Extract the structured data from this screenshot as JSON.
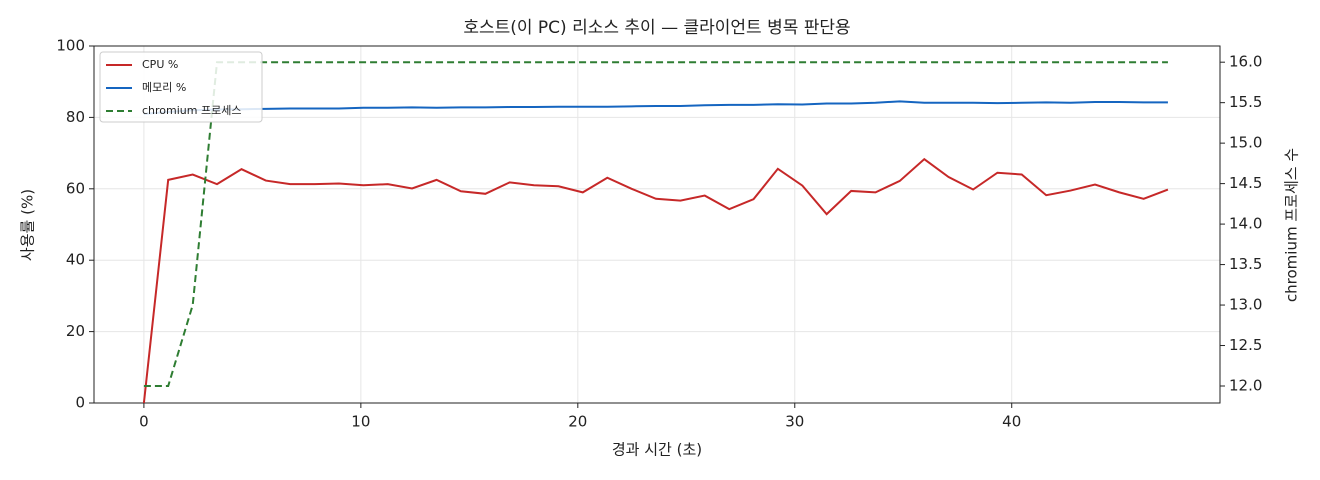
{
  "chart_data": {
    "type": "line",
    "title": "호스트(이 PC) 리소스 추이 — 클라이언트 병목 판단용",
    "x_label": "경과 시간 (초)",
    "y_label": "사용률 (%)",
    "y2_label": "chromium 프로세스 수",
    "x": [
      0,
      1.12,
      2.25,
      3.37,
      4.5,
      5.62,
      6.74,
      7.87,
      8.99,
      10.12,
      11.24,
      12.36,
      13.49,
      14.61,
      15.74,
      16.86,
      17.98,
      19.11,
      20.23,
      21.36,
      22.48,
      23.6,
      24.73,
      25.85,
      26.98,
      28.1,
      29.22,
      30.35,
      31.47,
      32.6,
      33.72,
      34.84,
      35.97,
      37.09,
      38.22,
      39.34,
      40.46,
      41.59,
      42.71,
      43.84,
      44.96,
      46.08,
      47.2
    ],
    "series": [
      {
        "name": "CPU %",
        "color": "#c62828",
        "linestyle": "solid",
        "values": [
          0,
          62.5,
          64,
          61.3,
          65.5,
          62.3,
          61.3,
          61.3,
          61.5,
          61,
          61.3,
          60.1,
          62.5,
          59.3,
          58.6,
          61.8,
          61,
          60.7,
          59,
          63.1,
          60,
          57.2,
          56.7,
          58.1,
          54.3,
          57.1,
          65.6,
          60.9,
          52.9,
          59.4,
          59,
          62.2,
          68.3,
          63.3,
          59.8,
          64.5,
          64,
          58.2,
          59.5,
          61.2,
          59,
          57.2,
          59.8
        ]
      },
      {
        "name": "메모리 %",
        "color": "#1565c0",
        "linestyle": "solid",
        "values": [
          81,
          81.5,
          82,
          82.2,
          82.3,
          82.4,
          82.5,
          82.5,
          82.5,
          82.7,
          82.7,
          82.8,
          82.7,
          82.8,
          82.8,
          82.9,
          82.9,
          83,
          83,
          83,
          83.1,
          83.2,
          83.2,
          83.4,
          83.5,
          83.5,
          83.7,
          83.6,
          83.9,
          83.9,
          84.1,
          84.5,
          84.1,
          84.1,
          84.1,
          84,
          84.1,
          84.2,
          84.1,
          84.3,
          84.3,
          84.2,
          84.2
        ]
      },
      {
        "name": "chromium 프로세스",
        "color": "#2e7d32",
        "linestyle": "dashed",
        "axis": "y2",
        "values": [
          12,
          12,
          13,
          16,
          16,
          16,
          16,
          16,
          16,
          16,
          16,
          16,
          16,
          16,
          16,
          16,
          16,
          16,
          16,
          16,
          16,
          16,
          16,
          16,
          16,
          16,
          16,
          16,
          16,
          16,
          16,
          16,
          16,
          16,
          16,
          16,
          16,
          16,
          16,
          16,
          16,
          16,
          16
        ]
      }
    ],
    "xlim": [
      -2.3,
      49.6
    ],
    "xticks": [
      0,
      10,
      20,
      30,
      40
    ],
    "ylim": [
      0,
      100
    ],
    "yticks": [
      0,
      20,
      40,
      60,
      80,
      100
    ],
    "y2lim": [
      11.79,
      16.2
    ],
    "y2ticks": [
      {
        "value": 12,
        "label": "12.0"
      },
      {
        "value": 12.5,
        "label": "12.5"
      },
      {
        "value": 13,
        "label": "13.0"
      },
      {
        "value": 13.5,
        "label": "13.5"
      },
      {
        "value": 14,
        "label": "14.0"
      },
      {
        "value": 14.5,
        "label": "14.5"
      },
      {
        "value": 15,
        "label": "15.0"
      },
      {
        "value": 15.5,
        "label": "15.5"
      },
      {
        "value": 16,
        "label": "16.0"
      }
    ],
    "grid": true,
    "legend": "upper-left"
  }
}
